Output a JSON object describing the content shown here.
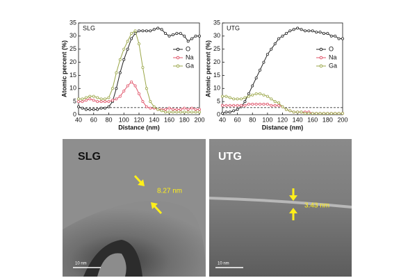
{
  "chart_data": [
    {
      "type": "line",
      "label": "SLG",
      "xlabel": "Distance (nm)",
      "ylabel": "Atomic percent (%)",
      "x": [
        40,
        45,
        50,
        55,
        60,
        65,
        70,
        75,
        80,
        85,
        90,
        95,
        100,
        105,
        110,
        115,
        120,
        125,
        130,
        135,
        140,
        145,
        150,
        155,
        160,
        165,
        170,
        175,
        180,
        185,
        190,
        195,
        200
      ],
      "series": [
        {
          "name": "O",
          "color": "#222222",
          "values": [
            3,
            2.5,
            2,
            2,
            2,
            2,
            2.5,
            2.5,
            3,
            5,
            10,
            16,
            21,
            25,
            29,
            31,
            32,
            32,
            32,
            32,
            32.5,
            33,
            32.5,
            31,
            30,
            30.5,
            31,
            31,
            30,
            28,
            29,
            30,
            30
          ]
        },
        {
          "name": "Na",
          "color": "#e0546a",
          "values": [
            5,
            5,
            5.5,
            6,
            5.5,
            5,
            5,
            5,
            5,
            5.5,
            6,
            7,
            9,
            11,
            12.5,
            11,
            8,
            5,
            3,
            2.5,
            2.5,
            2,
            2,
            2,
            2.5,
            2,
            2,
            2,
            2.5,
            2,
            2.5,
            2,
            2
          ]
        },
        {
          "name": "Ga",
          "color": "#9aa648",
          "values": [
            6,
            6,
            6.5,
            7,
            7,
            6.5,
            6,
            6,
            6.5,
            10,
            16,
            21,
            25,
            28,
            31,
            32,
            27,
            18,
            10,
            5,
            3,
            2,
            1.5,
            1,
            1,
            1,
            1,
            1,
            1,
            1,
            1,
            1,
            1
          ]
        }
      ],
      "hline": 2.7,
      "xlim": [
        40,
        200
      ],
      "ylim": [
        0,
        35
      ],
      "xticks": [
        40,
        60,
        80,
        100,
        120,
        140,
        160,
        180,
        200
      ],
      "yticks": [
        0,
        5,
        10,
        15,
        20,
        25,
        30,
        35
      ],
      "legend": "right"
    },
    {
      "type": "line",
      "label": "UTG",
      "xlabel": "Distance (nm)",
      "ylabel": "Atomic percent (%)",
      "x": [
        40,
        45,
        50,
        55,
        60,
        65,
        70,
        75,
        80,
        85,
        90,
        95,
        100,
        105,
        110,
        115,
        120,
        125,
        130,
        135,
        140,
        145,
        150,
        155,
        160,
        165,
        170,
        175,
        180,
        185,
        190,
        195,
        200
      ],
      "series": [
        {
          "name": "O",
          "color": "#222222",
          "values": [
            0.5,
            1,
            1,
            1.5,
            2,
            3,
            5,
            8,
            11,
            14,
            17,
            20,
            23,
            25,
            27,
            29,
            30,
            31,
            32,
            32.5,
            33,
            32.5,
            32,
            32,
            32,
            31.5,
            31.5,
            31,
            31,
            30,
            30,
            29,
            29
          ]
        },
        {
          "name": "Na",
          "color": "#e0546a",
          "values": [
            3.5,
            3.5,
            3.5,
            3.5,
            3.5,
            3.5,
            3.5,
            4,
            4,
            4,
            4,
            4,
            4,
            3.5,
            3.5,
            3.5,
            3,
            2,
            1.5,
            1,
            1,
            1,
            1,
            1,
            0.5,
            0.5,
            0.5,
            0.5,
            0.5,
            0.5,
            0.5,
            0.5,
            0.5
          ]
        },
        {
          "name": "Ga",
          "color": "#9aa648",
          "values": [
            7,
            7,
            6.5,
            6,
            6,
            6,
            6.5,
            7,
            7.5,
            8,
            8,
            7.5,
            7,
            6,
            5,
            4.5,
            3,
            2,
            1.5,
            1,
            1,
            1,
            0.5,
            0.5,
            0.5,
            0.5,
            0.5,
            0.5,
            0.5,
            0.5,
            0.5,
            0.5,
            0.5
          ]
        }
      ],
      "hline": 2.7,
      "xlim": [
        40,
        200
      ],
      "ylim": [
        0,
        35
      ],
      "xticks": [
        40,
        60,
        80,
        100,
        120,
        140,
        160,
        180,
        200
      ],
      "yticks": [
        0,
        5,
        10,
        15,
        20,
        25,
        30,
        35
      ],
      "legend": "right"
    }
  ],
  "images": [
    {
      "label": "SLG",
      "measure": "8.27 nm",
      "scale": "10 nm"
    },
    {
      "label": "UTG",
      "measure": "3.43 nm",
      "scale": "10 nm"
    }
  ]
}
